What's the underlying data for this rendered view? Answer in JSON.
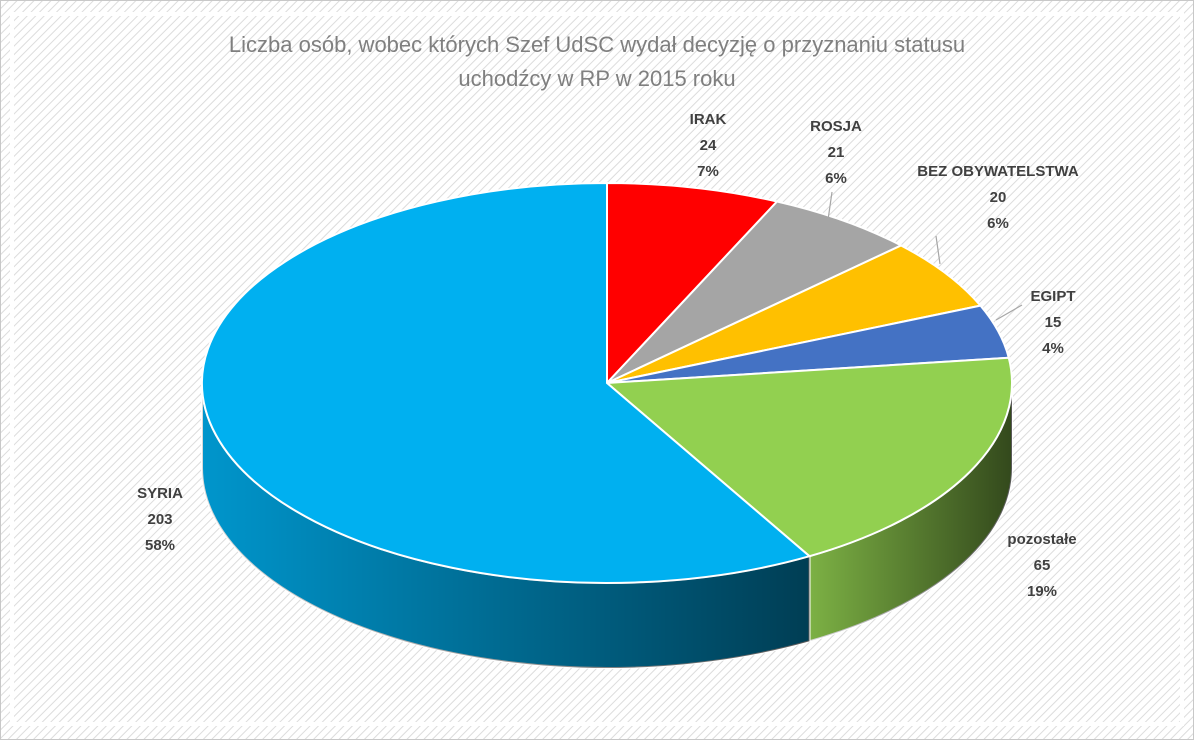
{
  "chart_data": {
    "type": "pie3d",
    "title": "Liczba osób, wobec których Szef UdSC wydał decyzję o  przyznaniu statusu uchodźcy w RP w 2015 roku",
    "categories": [
      "IRAK",
      "ROSJA",
      "BEZ OBYWATELSTWA",
      "EGIPT",
      "pozostałe",
      "SYRIA"
    ],
    "values": [
      24,
      21,
      20,
      15,
      65,
      203
    ],
    "percent_labels": [
      "7%",
      "6%",
      "6%",
      "4%",
      "19%",
      "58%"
    ],
    "colors": [
      "#ff0000",
      "#a5a5a5",
      "#ffc000",
      "#4472c4",
      "#92d050",
      "#00b0f0"
    ]
  }
}
